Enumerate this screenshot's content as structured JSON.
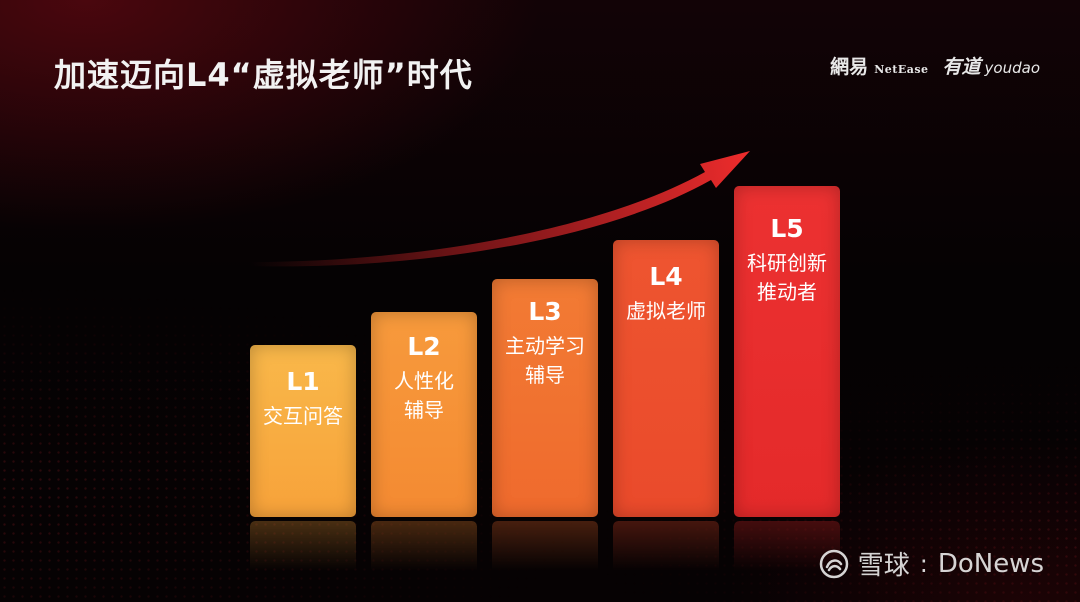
{
  "slide": {
    "title": "加速迈向L4“虚拟老师”时代"
  },
  "logos": {
    "netease_cn": "網易",
    "netease_en": "NetEase",
    "youdao_cn": "有道",
    "youdao_en": "youdao"
  },
  "levels": [
    {
      "level": "L1",
      "lines": [
        "交互问答"
      ]
    },
    {
      "level": "L2",
      "lines": [
        "人性化",
        "辅导"
      ]
    },
    {
      "level": "L3",
      "lines": [
        "主动学习",
        "辅导"
      ]
    },
    {
      "level": "L4",
      "lines": [
        "虚拟老师"
      ]
    },
    {
      "level": "L5",
      "lines": [
        "科研创新",
        "推动者"
      ]
    }
  ],
  "colors": {
    "l1": "#f7a23a",
    "l2": "#f48a32",
    "l3": "#ef6a2d",
    "l4": "#ea4a2b",
    "l5": "#e42a2a",
    "arrow": "#e02a2a"
  },
  "watermark": {
    "cn": "雪球",
    "separator": ":",
    "en": "DoNews",
    "icon": "snowball-logo-icon"
  }
}
